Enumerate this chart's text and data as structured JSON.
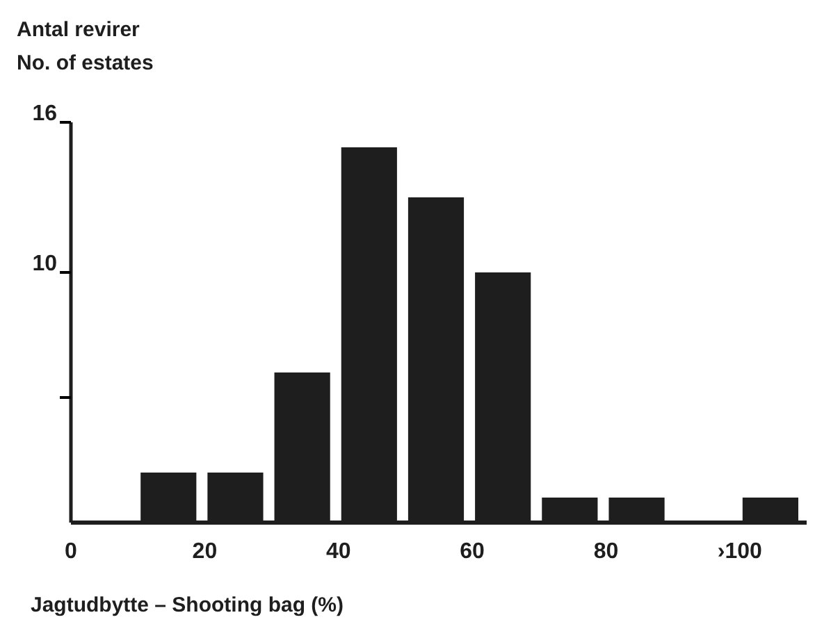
{
  "chart_data": {
    "type": "histogram",
    "ylabel": "Antal revirer\nNo. of estates",
    "xlabel": "Jagtudbytte – Shooting bag (%)",
    "bins": [
      10,
      20,
      30,
      40,
      50,
      60,
      70,
      80,
      90,
      100,
      110
    ],
    "values": [
      2,
      2,
      6,
      15,
      13,
      10,
      1,
      1,
      0,
      1
    ],
    "color": "#1e1e1e",
    "xlim": [
      0,
      110
    ],
    "xticks": [
      0,
      20,
      40,
      60,
      80,
      {
        "value": 100,
        "label": "›100"
      }
    ],
    "ylim": [
      0,
      16
    ],
    "yticks": [
      {
        "value": 5,
        "label": null
      },
      10,
      16
    ],
    "grid": false
  }
}
